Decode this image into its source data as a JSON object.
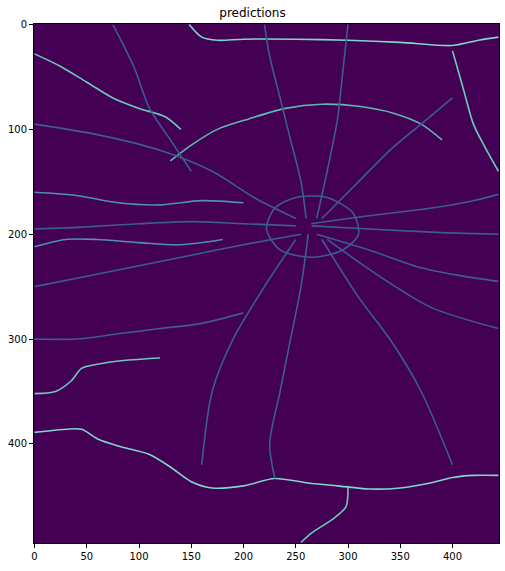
{
  "chart_data": {
    "type": "line",
    "title": "predictions",
    "xlim": [
      -0.5,
      444.5
    ],
    "ylim": [
      494.5,
      -0.5
    ],
    "xticks": [
      0,
      50,
      100,
      150,
      200,
      250,
      300,
      350,
      400
    ],
    "yticks": [
      0,
      100,
      200,
      300,
      400
    ],
    "grid": false,
    "series": [
      {
        "color": "#7fd6c8",
        "x": [
          148,
          160,
          175,
          200,
          250,
          300,
          350,
          400,
          425,
          444
        ],
        "values": [
          0,
          12,
          15,
          14,
          14,
          15,
          17,
          20,
          15,
          12
        ]
      },
      {
        "color": "#7fd6c8",
        "x": [
          0,
          30,
          45,
          60,
          80,
          110,
          130,
          150,
          170,
          200,
          230,
          260,
          290,
          320,
          350,
          380,
          400,
          420,
          444
        ],
        "values": [
          389,
          386,
          386,
          395,
          402,
          410,
          422,
          436,
          442,
          440,
          433,
          437,
          440,
          443,
          442,
          437,
          432,
          430,
          430
        ]
      },
      {
        "color": "#6cc9bb",
        "x": [
          0,
          25,
          50,
          75,
          100,
          125,
          140
        ],
        "values": [
          28,
          40,
          55,
          70,
          80,
          88,
          100
        ]
      },
      {
        "color": "#5fb8b0",
        "x": [
          130,
          150,
          175,
          205,
          240,
          275,
          310,
          345,
          370,
          390
        ],
        "values": [
          130,
          115,
          100,
          90,
          80,
          76,
          78,
          85,
          95,
          110
        ]
      },
      {
        "color": "#6cc9bb",
        "x": [
          400,
          410,
          420,
          430,
          444
        ],
        "values": [
          25,
          60,
          95,
          115,
          140
        ]
      },
      {
        "color": "#6cc9bb",
        "x": [
          0,
          20,
          35,
          45,
          60,
          90,
          120
        ],
        "values": [
          352,
          350,
          340,
          328,
          324,
          320,
          318
        ]
      },
      {
        "color": "#6cc9bb",
        "x": [
          300,
          298,
          285,
          265,
          255
        ],
        "values": [
          440,
          460,
          472,
          485,
          494
        ]
      },
      {
        "color": "#4f8fb0",
        "x": [
          0,
          40,
          80,
          120,
          160,
          200
        ],
        "values": [
          160,
          163,
          170,
          172,
          168,
          170
        ]
      },
      {
        "color": "#4f8fb0",
        "x": [
          0,
          30,
          60,
          100,
          140,
          180
        ],
        "values": [
          212,
          205,
          205,
          208,
          210,
          205
        ]
      },
      {
        "color": "#3b5b95",
        "x": [
          265,
          300,
          340,
          380,
          420,
          444
        ],
        "values": [
          190,
          185,
          180,
          175,
          168,
          162
        ]
      },
      {
        "color": "#3b5b95",
        "x": [
          265,
          320,
          380,
          444
        ],
        "values": [
          192,
          195,
          198,
          200
        ]
      },
      {
        "color": "#3b5b95",
        "x": [
          270,
          320,
          370,
          410,
          444
        ],
        "values": [
          200,
          215,
          232,
          240,
          245
        ]
      },
      {
        "color": "#3b5b95",
        "x": [
          275,
          310,
          340,
          370,
          400
        ],
        "values": [
          205,
          260,
          300,
          350,
          420
        ]
      },
      {
        "color": "#3b5b95",
        "x": [
          262,
          255,
          245,
          235,
          225,
          230
        ],
        "values": [
          200,
          250,
          300,
          350,
          400,
          433
        ]
      },
      {
        "color": "#3b5b95",
        "x": [
          250,
          220,
          190,
          170,
          160
        ],
        "values": [
          205,
          250,
          300,
          350,
          420
        ]
      },
      {
        "color": "#3b5b95",
        "x": [
          255,
          200,
          150,
          100,
          50,
          0
        ],
        "values": [
          200,
          210,
          220,
          230,
          240,
          250
        ]
      },
      {
        "color": "#3b5b95",
        "x": [
          250,
          200,
          150,
          100,
          50,
          0
        ],
        "values": [
          192,
          190,
          188,
          190,
          193,
          195
        ]
      },
      {
        "color": "#3b5b95",
        "x": [
          250,
          210,
          170,
          120,
          60,
          0
        ],
        "values": [
          185,
          165,
          140,
          120,
          105,
          95
        ]
      },
      {
        "color": "#3b5b95",
        "x": [
          260,
          255,
          245,
          235,
          225,
          220
        ],
        "values": [
          185,
          150,
          110,
          70,
          30,
          0
        ]
      },
      {
        "color": "#3b5b95",
        "x": [
          270,
          280,
          290,
          295,
          300
        ],
        "values": [
          185,
          140,
          90,
          45,
          0
        ]
      },
      {
        "color": "#3b5b95",
        "x": [
          275,
          310,
          340,
          370,
          400
        ],
        "values": [
          185,
          150,
          120,
          95,
          70
        ]
      },
      {
        "color": "#3b5b95",
        "x": [
          230,
          250,
          280,
          305,
          310,
          295,
          265,
          235,
          222,
          230
        ],
        "values": [
          175,
          165,
          165,
          180,
          200,
          215,
          222,
          215,
          195,
          175
        ]
      },
      {
        "color": "#3b5b95",
        "x": [
          280,
          330,
          380,
          444
        ],
        "values": [
          205,
          240,
          270,
          290
        ]
      },
      {
        "color": "#3b5b95",
        "x": [
          0,
          40,
          80,
          120,
          160,
          200
        ],
        "values": [
          300,
          300,
          295,
          290,
          285,
          275
        ]
      },
      {
        "color": "#3b5b95",
        "x": [
          75,
          95,
          110,
          130,
          150
        ],
        "values": [
          0,
          40,
          80,
          110,
          140
        ]
      }
    ]
  }
}
